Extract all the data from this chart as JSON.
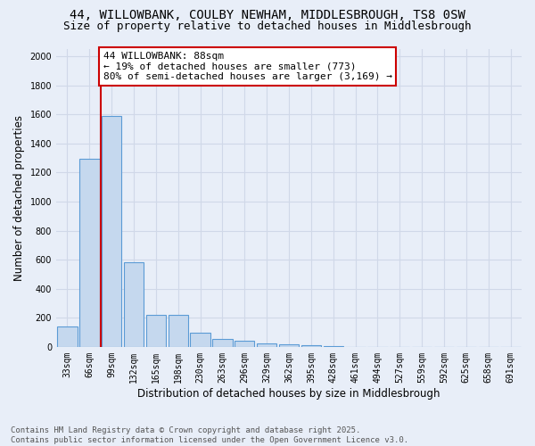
{
  "title_line1": "44, WILLOWBANK, COULBY NEWHAM, MIDDLESBROUGH, TS8 0SW",
  "title_line2": "Size of property relative to detached houses in Middlesbrough",
  "xlabel": "Distribution of detached houses by size in Middlesbrough",
  "ylabel": "Number of detached properties",
  "categories": [
    "33sqm",
    "66sqm",
    "99sqm",
    "132sqm",
    "165sqm",
    "198sqm",
    "230sqm",
    "263sqm",
    "296sqm",
    "329sqm",
    "362sqm",
    "395sqm",
    "428sqm",
    "461sqm",
    "494sqm",
    "527sqm",
    "559sqm",
    "592sqm",
    "625sqm",
    "658sqm",
    "691sqm"
  ],
  "values": [
    140,
    1295,
    1590,
    580,
    220,
    220,
    100,
    55,
    45,
    25,
    15,
    10,
    5,
    0,
    0,
    0,
    0,
    0,
    0,
    0,
    0
  ],
  "bar_color": "#c5d8ee",
  "bar_edge_color": "#5b9bd5",
  "vline_color": "#cc0000",
  "vline_position": 1.5,
  "annotation_text": "44 WILLOWBANK: 88sqm\n← 19% of detached houses are smaller (773)\n80% of semi-detached houses are larger (3,169) →",
  "ylim": [
    0,
    2050
  ],
  "yticks": [
    0,
    200,
    400,
    600,
    800,
    1000,
    1200,
    1400,
    1600,
    1800,
    2000
  ],
  "background_color": "#e8eef8",
  "grid_color": "#d0d8e8",
  "footer_line1": "Contains HM Land Registry data © Crown copyright and database right 2025.",
  "footer_line2": "Contains public sector information licensed under the Open Government Licence v3.0.",
  "title_fontsize": 10,
  "subtitle_fontsize": 9,
  "ylabel_fontsize": 8.5,
  "xlabel_fontsize": 8.5,
  "tick_fontsize": 7,
  "annotation_fontsize": 8,
  "footer_fontsize": 6.5
}
